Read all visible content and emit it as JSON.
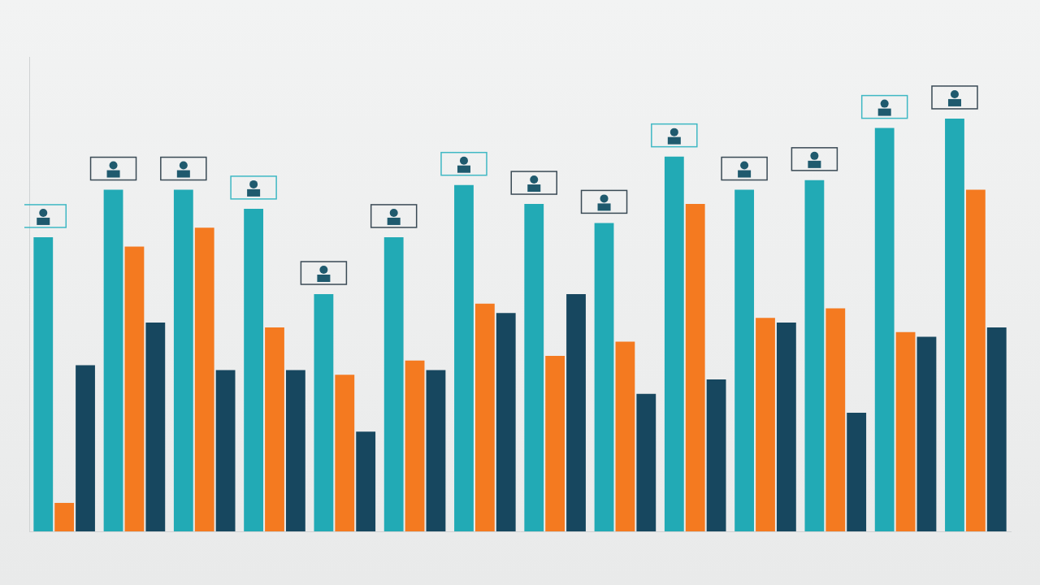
{
  "chart_data": {
    "type": "bar",
    "categories": [
      null,
      null,
      null,
      null,
      null,
      null,
      null,
      null,
      null,
      null,
      null,
      null,
      null,
      null
    ],
    "series": [
      {
        "color": "#22aab5",
        "values": [
          62,
          72,
          72,
          68,
          50,
          62,
          73,
          69,
          65,
          79,
          72,
          74,
          85,
          87
        ]
      },
      {
        "color": "#f47a20",
        "values": [
          6,
          60,
          64,
          43,
          33,
          36,
          48,
          37,
          40,
          69,
          45,
          47,
          42,
          72
        ]
      },
      {
        "color": "#17475f",
        "values": [
          35,
          44,
          34,
          34,
          21,
          34,
          46,
          50,
          29,
          32,
          44,
          25,
          41,
          43
        ]
      }
    ],
    "ylim": [
      0,
      100
    ],
    "grid": false,
    "tick_labels": false
  }
}
